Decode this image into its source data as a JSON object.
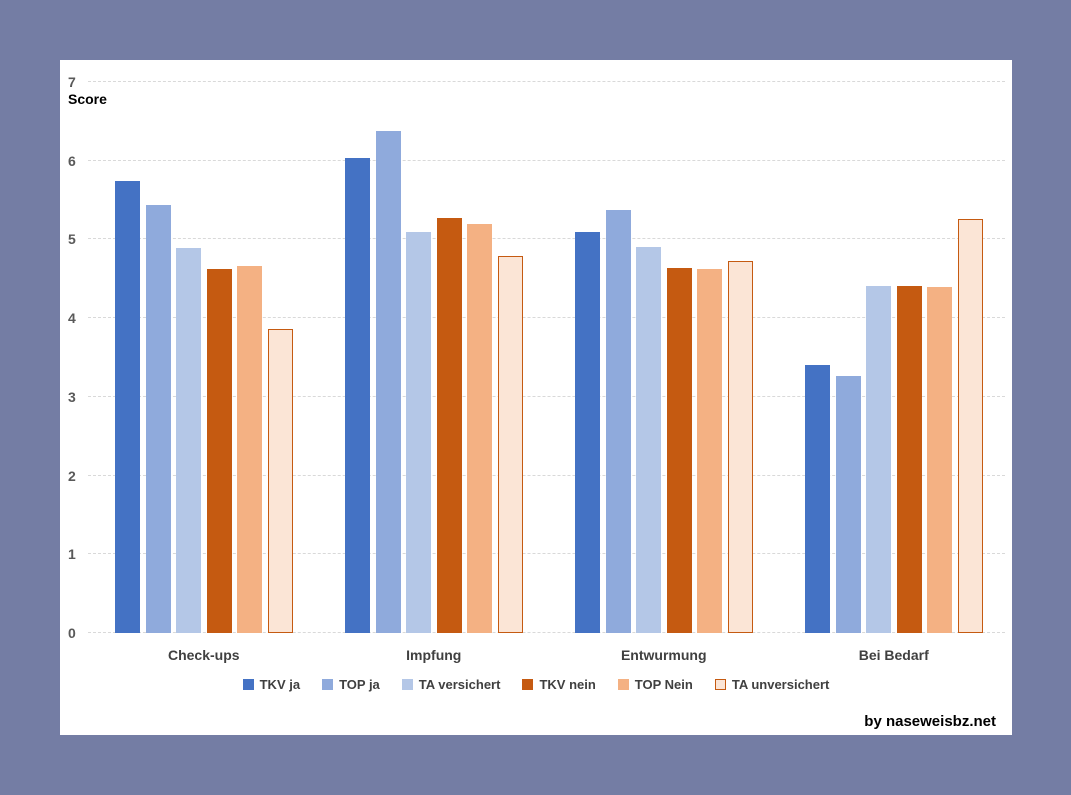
{
  "page": {
    "background_color": "#747DA4",
    "panel_color": "#FFFFFF"
  },
  "score_label": "Score",
  "watermark": "by naseweisbz.net",
  "chart_data": {
    "type": "bar",
    "title": "",
    "xlabel": "",
    "ylabel": "Score",
    "ylim": [
      0,
      7
    ],
    "yticks": [
      0,
      1,
      2,
      3,
      4,
      5,
      6,
      7
    ],
    "grid": true,
    "gridline_color": "#D9D9D9",
    "legend_position": "bottom",
    "categories": [
      "Check-ups",
      "Impfung",
      "Entwurmung",
      "Bei Bedarf"
    ],
    "series": [
      {
        "name": "TKV ja",
        "color": "#4472C4",
        "values": [
          5.74,
          6.04,
          5.1,
          3.4
        ]
      },
      {
        "name": "TOP ja",
        "color": "#8FAADC",
        "values": [
          5.44,
          6.38,
          5.37,
          3.26
        ]
      },
      {
        "name": "TA versichert",
        "color": "#B4C7E7",
        "values": [
          4.89,
          5.09,
          4.91,
          4.41
        ]
      },
      {
        "name": "TKV nein",
        "color": "#C55A11",
        "values": [
          4.63,
          5.27,
          4.64,
          4.41
        ]
      },
      {
        "name": "TOP Nein",
        "color": "#F4B183",
        "values": [
          4.66,
          5.2,
          4.63,
          4.39
        ]
      },
      {
        "name": "TA unversichert",
        "color": "#FBE5D6",
        "border_color": "#C55A11",
        "values": [
          3.86,
          4.79,
          4.72,
          5.26
        ]
      }
    ]
  }
}
